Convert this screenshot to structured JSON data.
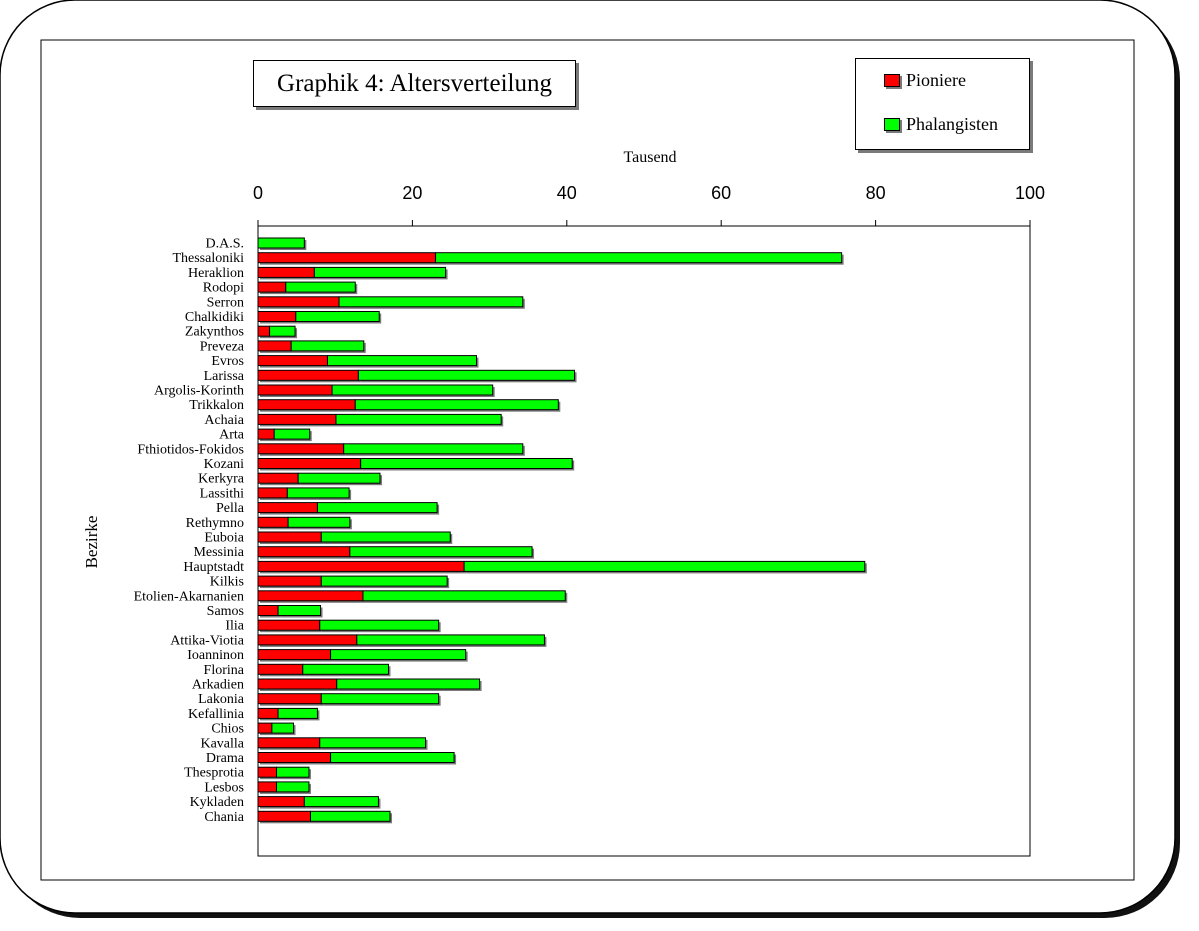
{
  "chart_data": {
    "type": "bar",
    "orientation": "horizontal",
    "stacked": true,
    "title": "Graphik 4: Altersverteilung",
    "xlabel": "Tausend",
    "ylabel": "Bezirke",
    "xlim": [
      0,
      100
    ],
    "xticks": [
      0,
      20,
      40,
      60,
      80,
      100
    ],
    "x_axis_position": "top",
    "grid": false,
    "legend_position": "top-right",
    "categories": [
      "D.A.S.",
      "Thessaloniki",
      "Heraklion",
      "Rodopi",
      "Serron",
      "Chalkidiki",
      "Zakynthos",
      "Preveza",
      "Evros",
      "Larissa",
      "Argolis-Korinth",
      "Trikkalon",
      "Achaia",
      "Arta",
      "Fthiotidos-Fokidos",
      "Kozani",
      "Kerkyra",
      "Lassithi",
      "Pella",
      "Rethymno",
      "Euboia",
      "Messinia",
      "Hauptstadt",
      "Kilkis",
      "Etolien-Akarnanien",
      "Samos",
      "Ilia",
      "Attika-Viotia",
      "Ioanninon",
      "Florina",
      "Arkadien",
      "Lakonia",
      "Kefallinia",
      "Chios",
      "Kavalla",
      "Drama",
      "Thesprotia",
      "Lesbos",
      "Kykladen",
      "Chania"
    ],
    "series": [
      {
        "name": "Pioniere",
        "color": "#ff0000",
        "values": [
          0,
          23,
          7.3,
          3.6,
          10.5,
          4.9,
          1.5,
          4.3,
          9,
          13,
          9.6,
          12.6,
          10.1,
          2.1,
          11.1,
          13.3,
          5.2,
          3.8,
          7.7,
          3.9,
          8.2,
          11.9,
          26.7,
          8.2,
          13.6,
          2.6,
          8,
          12.8,
          9.4,
          5.8,
          10.2,
          8.2,
          2.6,
          1.8,
          8,
          9.4,
          2.4,
          2.4,
          6,
          6.8
        ]
      },
      {
        "name": "Phalangisten",
        "color": "#00ff00",
        "values": [
          6,
          52.6,
          17,
          9,
          23.8,
          10.8,
          3.3,
          9.4,
          19.3,
          28,
          20.8,
          26.3,
          21.4,
          4.6,
          23.2,
          27.4,
          10.6,
          8,
          15.5,
          8,
          16.7,
          23.6,
          51.9,
          16.3,
          26.2,
          5.5,
          15.4,
          24.3,
          17.5,
          11.1,
          18.5,
          15.2,
          5.1,
          2.8,
          13.7,
          16,
          4.2,
          4.2,
          9.6,
          10.3
        ]
      }
    ]
  }
}
